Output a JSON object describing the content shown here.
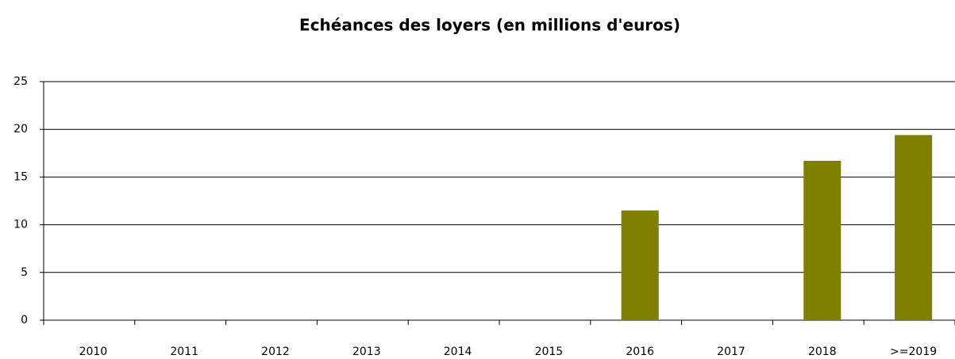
{
  "chart_data": {
    "type": "bar",
    "title": "Echéances des loyers (en millions d'euros)",
    "categories": [
      "2010",
      "2011",
      "2012",
      "2013",
      "2014",
      "2015",
      "2016",
      "2017",
      "2018",
      ">=2019"
    ],
    "values": [
      0,
      0,
      0,
      0,
      0,
      0,
      11.5,
      0,
      16.7,
      19.4
    ],
    "color": "#808000",
    "ylim": [
      0,
      25
    ],
    "yticks": [
      0,
      5,
      10,
      15,
      20,
      25
    ],
    "grid": true
  }
}
